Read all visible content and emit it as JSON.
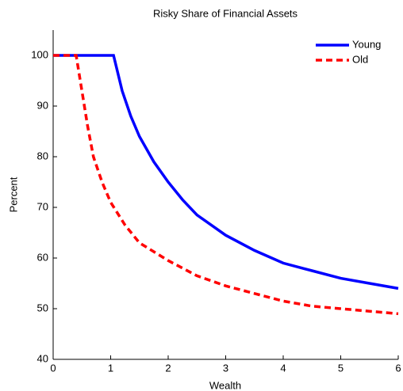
{
  "chart_data": {
    "type": "line",
    "title": "Risky Share of Financial Assets",
    "x_label": "Wealth",
    "y_label": "Percent",
    "series": [
      {
        "name": "Young",
        "color": "#0000ff",
        "dash": "solid",
        "x": [
          0,
          1.05,
          1.2,
          1.35,
          1.5,
          1.75,
          2,
          2.25,
          2.5,
          3,
          3.5,
          4,
          4.5,
          5,
          5.5,
          6
        ],
        "values": [
          100,
          100,
          93,
          88,
          84,
          79,
          75,
          71.5,
          68.5,
          64.5,
          61.5,
          59,
          57.5,
          56,
          55,
          54
        ]
      },
      {
        "name": "Old",
        "color": "#ff0000",
        "dash": "dashed",
        "x": [
          0,
          0.4,
          0.5,
          0.6,
          0.7,
          0.85,
          1,
          1.25,
          1.5,
          2,
          2.5,
          3,
          3.5,
          4,
          4.5,
          5,
          5.5,
          6
        ],
        "values": [
          100,
          100,
          93,
          86,
          80,
          75,
          71,
          66.5,
          63,
          59.5,
          56.5,
          54.5,
          53,
          51.5,
          50.5,
          50,
          49.5,
          49
        ]
      }
    ],
    "xlim": [
      0,
      6
    ],
    "xticks": [
      0,
      1,
      2,
      3,
      4,
      5,
      6
    ],
    "ylim": [
      40,
      105
    ],
    "yticks": [
      40,
      50,
      60,
      70,
      80,
      90,
      100
    ],
    "grid": false,
    "legend": "upper right"
  }
}
